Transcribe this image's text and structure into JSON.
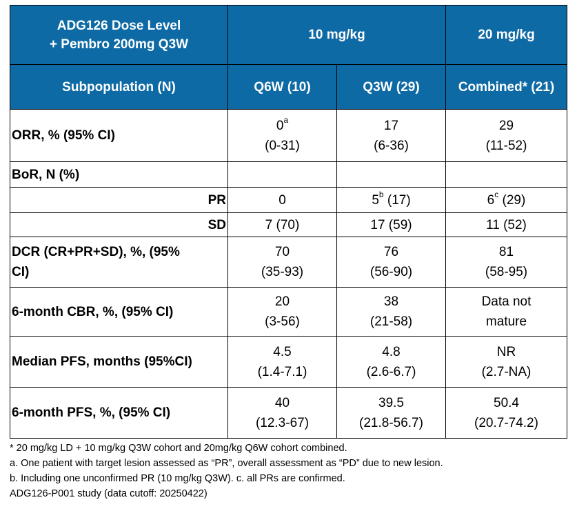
{
  "header": {
    "dose_level_line1": "ADG126 Dose Level",
    "dose_level_line2": "+ Pembro 200mg Q3W",
    "dose_10": "10 mg/kg",
    "dose_20": "20 mg/kg",
    "subpopulation": "Subpopulation (N)",
    "q6w": "Q6W (10)",
    "q3w": "Q3W (29)",
    "combined": "Combined* (21)"
  },
  "rows": {
    "orr": {
      "label": "ORR, % (95% CI)",
      "c1_main": "0",
      "c1_sup": "a",
      "c1_ci": "(0-31)",
      "c2_main": "17",
      "c2_ci": "(6-36)",
      "c3_main": "29",
      "c3_ci": "(11-52)"
    },
    "bor": {
      "label": "BoR, N (%)"
    },
    "pr": {
      "label": "PR",
      "c1": "0",
      "c2_main": "5",
      "c2_sup": "b",
      "c2_rest": " (17)",
      "c3_main": "6",
      "c3_sup": "c",
      "c3_rest": " (29)"
    },
    "sd": {
      "label": "SD",
      "c1": "7 (70)",
      "c2": "17 (59)",
      "c3": "11 (52)"
    },
    "dcr": {
      "label1": "DCR (CR+PR+SD), %,  (95%",
      "label2": "CI)",
      "c1_main": "70",
      "c1_ci": "(35-93)",
      "c2_main": "76",
      "c2_ci": "(56-90)",
      "c3_main": "81",
      "c3_ci": "(58-95)"
    },
    "cbr": {
      "label": "6-month CBR, %, (95% CI)",
      "c1_main": "20",
      "c1_ci": "(3-56)",
      "c2_main": "38",
      "c2_ci": "(21-58)",
      "c3_main": "Data not",
      "c3_ci": "mature"
    },
    "median_pfs": {
      "label": "Median PFS, months (95%CI)",
      "c1_main": "4.5",
      "c1_ci": "(1.4-7.1)",
      "c2_main": "4.8",
      "c2_ci": "(2.6-6.7)",
      "c3_main": "NR",
      "c3_ci": "(2.7-NA)"
    },
    "pfs6": {
      "label": "6-month PFS, %, (95% CI)",
      "c1_main": "40",
      "c1_ci": "(12.3-67)",
      "c2_main": "39.5",
      "c2_ci": "(21.8-56.7)",
      "c3_main": "50.4",
      "c3_ci": "(20.7-74.2)"
    }
  },
  "footnotes": {
    "star": "* 20 mg/kg LD + 10 mg/kg Q3W cohort and 20mg/kg Q6W cohort combined.",
    "a": "a. One patient with target lesion assessed as “PR”, overall assessment as “PD” due to new lesion.",
    "b": "b.  Including one unconfirmed PR (10 mg/kg Q3W).  c. all PRs are confirmed.",
    "study": "ADG126-P001 study (data cutoff: 20250422)"
  },
  "colors": {
    "header_bg": "#0e6aa5",
    "header_text": "#ffffff"
  }
}
